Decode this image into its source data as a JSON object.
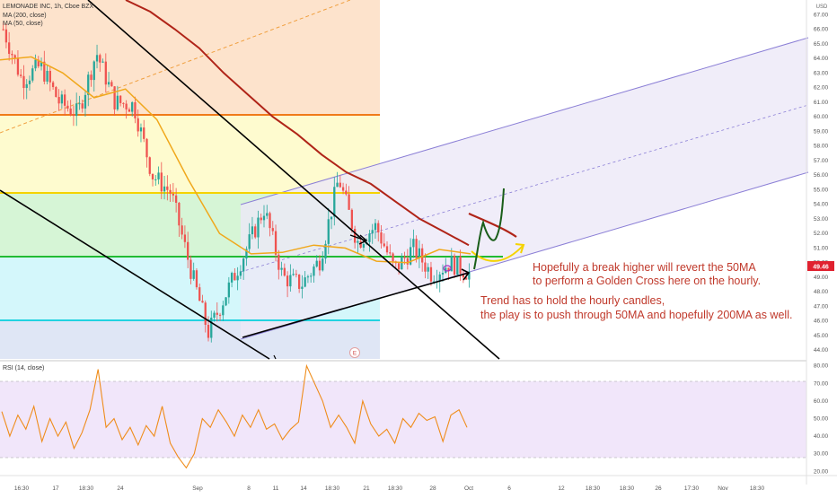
{
  "header": {
    "symbol_line": "LEMONADE INC, 1h, Cboe BZX",
    "ma200_label": "MA (200, close)",
    "ma50_label": "MA (50, close)",
    "currency": "USD"
  },
  "price_panel": {
    "last_price_badge": "49.46",
    "event_marker": "E"
  },
  "rsi_panel": {
    "label": "RSI (14, close)"
  },
  "annotations": {
    "note1_line1": "Hopefully a break higher will revert the 50MA",
    "note1_line2": "to perform a Golden Cross here on the hourly.",
    "note2_line1": "Trend has to hold the hourly candles,",
    "note2_line2": "the play is to push through 50MA and hopefully 200MA as well."
  },
  "colors": {
    "fib_orange": "#fde3cc",
    "fib_yellow": "#fefbcf",
    "fib_green": "#d6f5d6",
    "fib_cyan": "#d4f7fb",
    "fib_blue": "#dfe6f5",
    "channel_fill": "#ece9f8",
    "channel_border": "#8b7fd6",
    "ma200": "#b02418",
    "ma50": "#f0a81c",
    "rsi_line": "#ef8c1a",
    "rsi_band": "#f1e6fa",
    "orange_level": "#f07b1a",
    "yellow_level": "#f5d300",
    "green_level": "#22bb33",
    "cyan_level": "#22d3e0"
  },
  "chart_data": [
    {
      "type": "line",
      "title": "LEMONADE INC, 1h, Cboe BZX",
      "x_ticks": [
        "16:30",
        "17",
        "18:30",
        "24",
        "Sep",
        "8",
        "11",
        "14",
        "18:30",
        "21",
        "18:30",
        "28",
        "Oct",
        "6",
        "12",
        "18:30",
        "18:30",
        "26",
        "17:30",
        "Nov",
        "18:30"
      ],
      "y_ticks": [
        44.0,
        45.0,
        46.0,
        47.0,
        48.0,
        49.0,
        50.0,
        51.0,
        52.0,
        53.0,
        54.0,
        55.0,
        56.0,
        57.0,
        58.0,
        59.0,
        60.0,
        61.0,
        62.0,
        63.0,
        64.0,
        65.0,
        66.0,
        67.0
      ],
      "y_range": [
        43.4,
        68.0
      ],
      "horizontal_levels": [
        60.5,
        54.8,
        50.2,
        45.7
      ],
      "last_price": 49.46,
      "series": [
        {
          "name": "MA (200, close)",
          "values": [
            68.0,
            67.2,
            66.0,
            64.7,
            63.0,
            61.5,
            60.0,
            58.8,
            57.4,
            56.2,
            55.4,
            54.2,
            53.0,
            52.1,
            51.2
          ]
        },
        {
          "name": "MA (50, close)",
          "values": [
            63.9,
            64.1,
            63.0,
            61.3,
            61.9,
            59.8,
            55.7,
            52.0,
            50.6,
            50.7,
            51.2,
            51.0,
            50.1,
            50.0,
            50.9,
            50.6
          ]
        }
      ],
      "price_path": [
        66.0,
        62.5,
        63.5,
        61.0,
        60.2,
        64.4,
        61.0,
        60.8,
        56.0,
        54.8,
        49.8,
        45.2,
        48.0,
        50.8,
        53.7,
        49.0,
        48.5,
        50.2,
        55.8,
        51.4,
        52.5,
        49.5,
        51.0,
        49.2,
        50.0,
        49.3
      ]
    },
    {
      "type": "line",
      "title": "RSI (14, close)",
      "y_ticks": [
        20.0,
        30.0,
        40.0,
        50.0,
        60.0,
        70.0,
        80.0
      ],
      "band": [
        30,
        70
      ],
      "values": [
        54,
        40,
        52,
        44,
        57,
        37,
        50,
        40,
        48,
        33,
        42,
        55,
        78,
        45,
        50,
        38,
        45,
        35,
        46,
        40,
        57,
        36,
        28,
        22,
        30,
        50,
        45,
        55,
        48,
        40,
        52,
        45,
        55,
        44,
        47,
        38,
        44,
        48,
        80,
        70,
        60,
        45,
        52,
        45,
        36,
        60,
        47,
        40,
        44,
        36,
        50,
        45,
        53,
        49,
        51,
        37,
        52,
        55,
        45
      ]
    }
  ]
}
